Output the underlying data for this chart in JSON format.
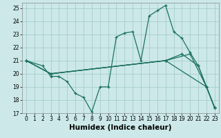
{
  "xlabel": "Humidex (Indice chaleur)",
  "xlim": [
    -0.5,
    23.5
  ],
  "ylim": [
    17,
    25.4
  ],
  "xticks": [
    0,
    1,
    2,
    3,
    4,
    5,
    6,
    7,
    8,
    9,
    10,
    11,
    12,
    13,
    14,
    15,
    16,
    17,
    18,
    19,
    20,
    21,
    22,
    23
  ],
  "yticks": [
    17,
    18,
    19,
    20,
    21,
    22,
    23,
    24,
    25
  ],
  "background_color": "#cce8e8",
  "grid_color": "#a0c8c8",
  "line_color": "#1a7060",
  "lines": [
    {
      "x": [
        0,
        2,
        3,
        4,
        5,
        6,
        7,
        8,
        9,
        10,
        11,
        12,
        13,
        14,
        15,
        16,
        17,
        18,
        19,
        20,
        21,
        22,
        23
      ],
      "y": [
        21,
        20.6,
        19.8,
        19.8,
        19.4,
        18.5,
        18.2,
        17.1,
        19.0,
        19.0,
        22.8,
        23.1,
        23.2,
        21.0,
        24.4,
        24.8,
        25.2,
        23.2,
        22.7,
        21.6,
        20.6,
        19.0,
        17.4
      ]
    },
    {
      "x": [
        0,
        3,
        17,
        19,
        21,
        22,
        23
      ],
      "y": [
        21,
        20.0,
        21.0,
        21.5,
        20.6,
        19.0,
        17.4
      ]
    },
    {
      "x": [
        0,
        3,
        17,
        20,
        22,
        23
      ],
      "y": [
        21,
        20.0,
        21.0,
        21.5,
        19.0,
        17.4
      ]
    },
    {
      "x": [
        0,
        3,
        17,
        22,
        23
      ],
      "y": [
        21,
        20.0,
        21.0,
        19.0,
        17.4
      ]
    }
  ],
  "marker": "+",
  "markersize": 3.5,
  "linewidth": 0.9,
  "tick_fontsize": 5.5,
  "xlabel_fontsize": 7.5
}
